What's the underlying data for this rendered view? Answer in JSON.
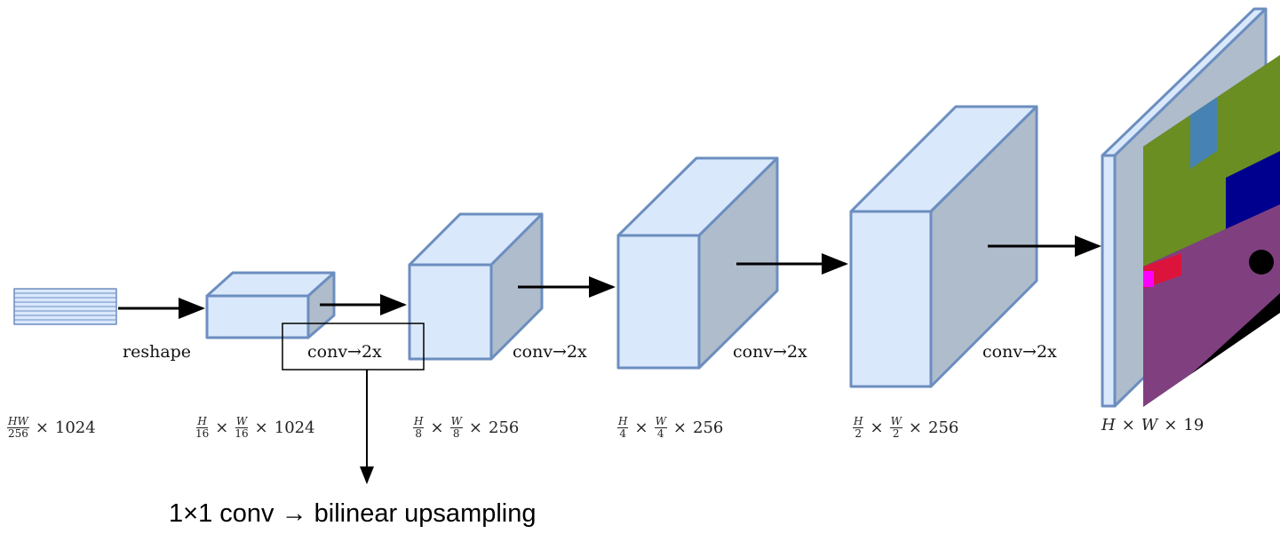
{
  "labels": {
    "reshape": "reshape",
    "convs": [
      "conv→2x",
      "conv→2x",
      "conv→2x",
      "conv→2x"
    ],
    "caption": "1×1 conv → bilinear upsampling"
  },
  "dims": [
    {
      "tokens": [
        {
          "num": "HW",
          "den": "256"
        },
        "×",
        "1024"
      ]
    },
    {
      "tokens": [
        {
          "num": "H",
          "den": "16"
        },
        "×",
        {
          "num": "W",
          "den": "16"
        },
        "×",
        "1024"
      ]
    },
    {
      "tokens": [
        {
          "num": "H",
          "den": "8"
        },
        "×",
        {
          "num": "W",
          "den": "8"
        },
        "×",
        "256"
      ]
    },
    {
      "tokens": [
        {
          "num": "H",
          "den": "4"
        },
        "×",
        {
          "num": "W",
          "den": "4"
        },
        "×",
        "256"
      ]
    },
    {
      "tokens": [
        {
          "num": "H",
          "den": "2"
        },
        "×",
        {
          "num": "W",
          "den": "2"
        },
        "×",
        "256"
      ]
    },
    {
      "tokens": [
        "H",
        "×",
        "W",
        "×",
        "19"
      ]
    }
  ]
}
